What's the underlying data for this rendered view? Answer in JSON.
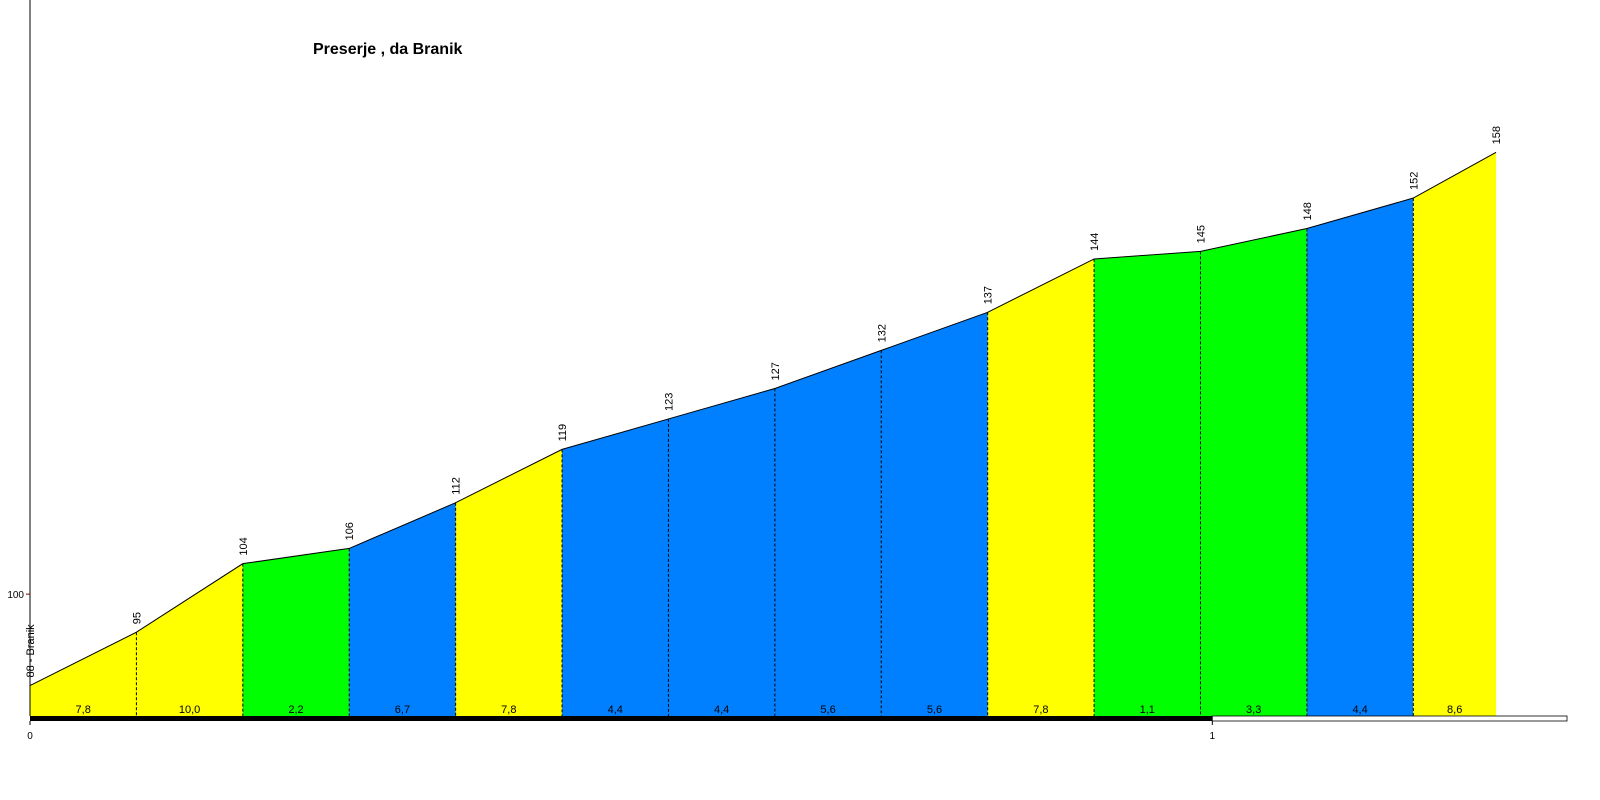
{
  "chart_data": {
    "type": "elevation-profile",
    "title": "Preserje , da Branik",
    "x": [
      0,
      0.09,
      0.18,
      0.27,
      0.36,
      0.45,
      0.54,
      0.63,
      0.72,
      0.81,
      0.9,
      0.99,
      1.08,
      1.17,
      1.24
    ],
    "values": [
      88,
      95,
      104,
      106,
      112,
      119,
      123,
      127,
      132,
      137,
      144,
      145,
      148,
      152,
      158
    ],
    "value_labels": [
      "88 - Branik",
      "95",
      "104",
      "106",
      "112",
      "119",
      "123",
      "127",
      "132",
      "137",
      "144",
      "145",
      "148",
      "152",
      "158"
    ],
    "segments": {
      "values": [
        7.8,
        10.0,
        2.2,
        6.7,
        7.8,
        4.4,
        4.4,
        5.6,
        5.6,
        7.8,
        1.1,
        3.3,
        4.4,
        8.6
      ],
      "value_labels": [
        "7,8",
        "10,0",
        "2,2",
        "6,7",
        "7,8",
        "4,4",
        "4,4",
        "5,6",
        "5,6",
        "7,8",
        "1,1",
        "3,3",
        "4,4",
        "8,6"
      ],
      "colors": [
        "#ffff00",
        "#ffff00",
        "#00ff00",
        "#0080ff",
        "#ffff00",
        "#0080ff",
        "#0080ff",
        "#0080ff",
        "#0080ff",
        "#ffff00",
        "#00ff00",
        "#00ff00",
        "#0080ff",
        "#ffff00"
      ]
    },
    "xlim": [
      0,
      1.3
    ],
    "xticks": [
      0,
      1
    ],
    "ylim": [
      84,
      178
    ],
    "yticks": [
      100
    ]
  }
}
